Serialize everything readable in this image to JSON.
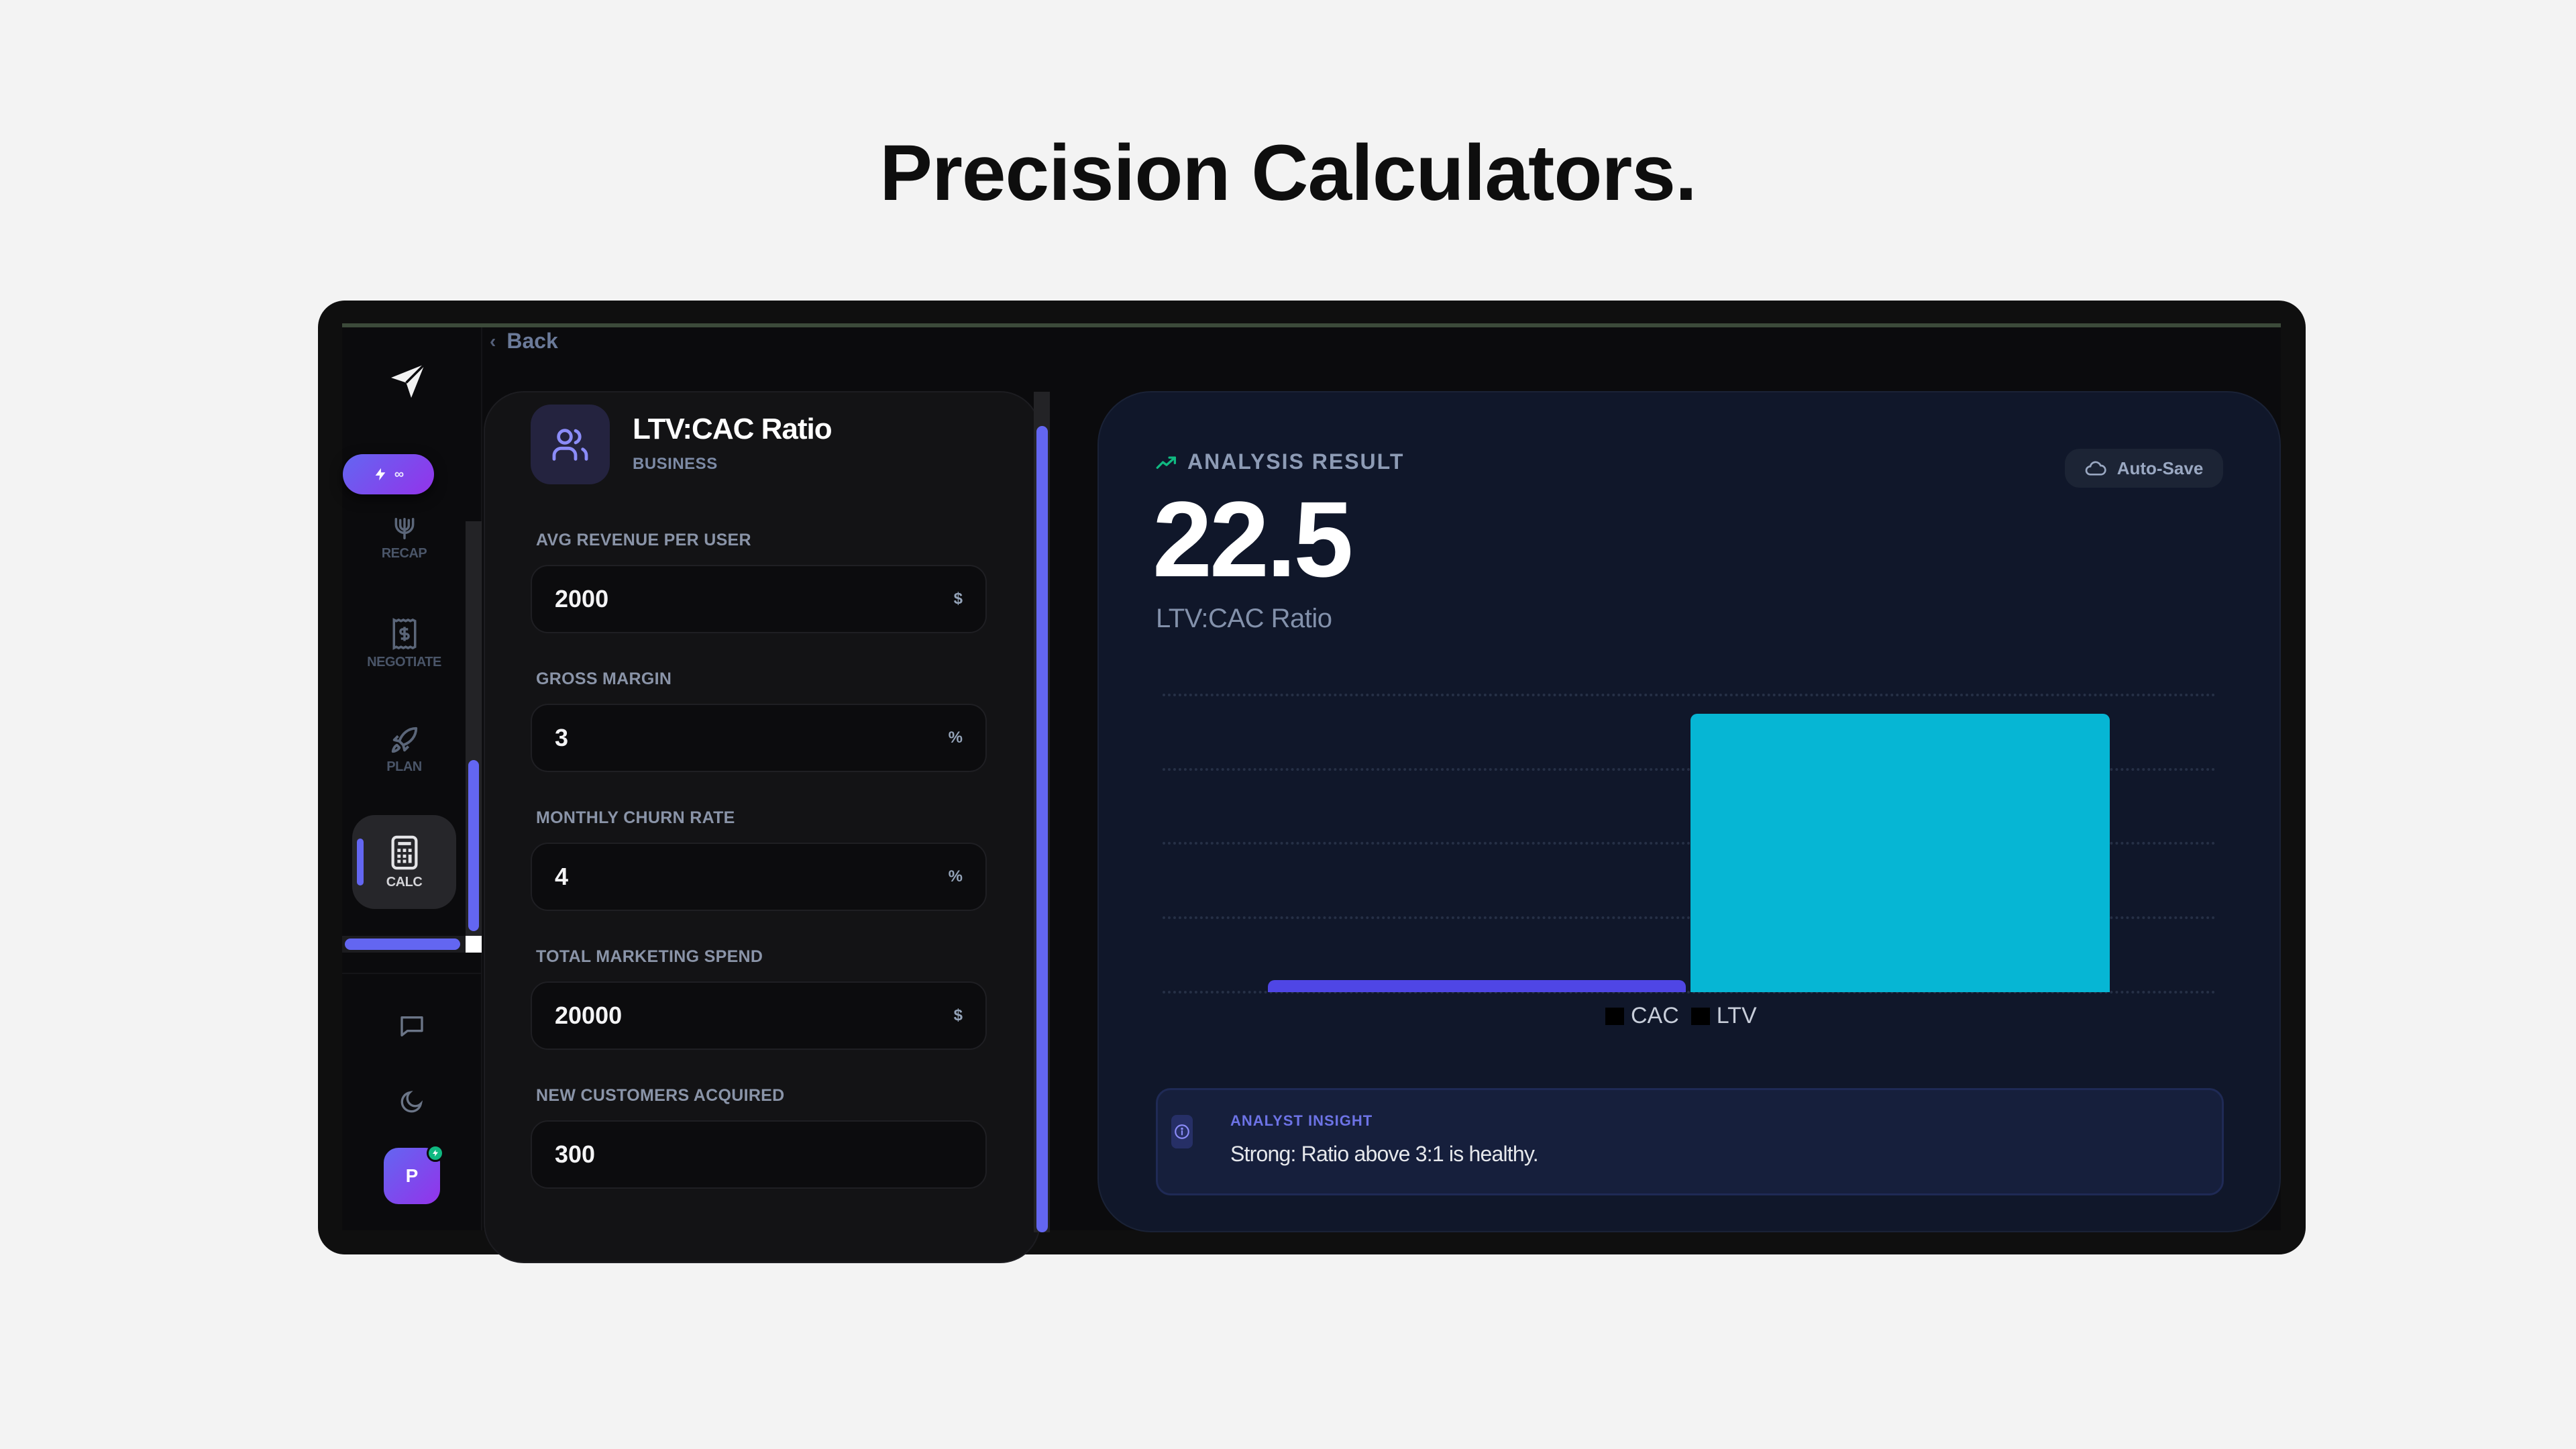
{
  "hero": {
    "title": "Precision Calculators."
  },
  "sidebar": {
    "badge": {
      "icon": "bolt-icon",
      "label": "∞"
    },
    "items": [
      {
        "label": "RECAP",
        "icon": "psi-icon",
        "active": false
      },
      {
        "label": "NEGOTIATE",
        "icon": "receipt-dollar-icon",
        "active": false
      },
      {
        "label": "PLAN",
        "icon": "rocket-icon",
        "active": false
      },
      {
        "label": "CALC",
        "icon": "calculator-icon",
        "active": true
      }
    ],
    "footer": {
      "chat_icon": "message-square-icon",
      "theme_icon": "moon-icon",
      "avatar_initial": "P"
    }
  },
  "nav": {
    "back_label": "Back"
  },
  "calculator": {
    "title": "LTV:CAC Ratio",
    "category": "BUSINESS",
    "icon": "users-icon",
    "fields": [
      {
        "label": "AVG REVENUE PER USER",
        "value": "2000",
        "unit": "$"
      },
      {
        "label": "GROSS MARGIN",
        "value": "3",
        "unit": "%"
      },
      {
        "label": "MONTHLY CHURN RATE",
        "value": "4",
        "unit": "%"
      },
      {
        "label": "TOTAL MARKETING SPEND",
        "value": "20000",
        "unit": "$"
      },
      {
        "label": "NEW CUSTOMERS ACQUIRED",
        "value": "300",
        "unit": ""
      }
    ]
  },
  "result": {
    "label": "ANALYSIS RESULT",
    "value": "22.5",
    "subtitle": "LTV:CAC Ratio",
    "autosave_label": "Auto-Save"
  },
  "insight": {
    "title": "ANALYST INSIGHT",
    "text": "Strong: Ratio above 3:1 is healthy."
  },
  "colors": {
    "accent": "#6366f1",
    "cac_bar": "#4f46e5",
    "ltv_bar": "#06b6d4",
    "trend_icon": "#10b981",
    "panel_bg": "#10172a"
  },
  "chart_data": {
    "type": "bar",
    "categories": [
      "CAC",
      "LTV"
    ],
    "values": [
      66.67,
      1500
    ],
    "series": [
      {
        "name": "CAC",
        "values": [
          66.67
        ],
        "color": "#4f46e5"
      },
      {
        "name": "LTV",
        "values": [
          1500
        ],
        "color": "#06b6d4"
      }
    ],
    "title": "",
    "xlabel": "",
    "ylabel": "",
    "ylim": [
      0,
      1600
    ],
    "gridlines": [
      0,
      400,
      800,
      1200,
      1600
    ],
    "grid": true,
    "legend": [
      "CAC",
      "LTV"
    ],
    "legend_position": "bottom"
  }
}
